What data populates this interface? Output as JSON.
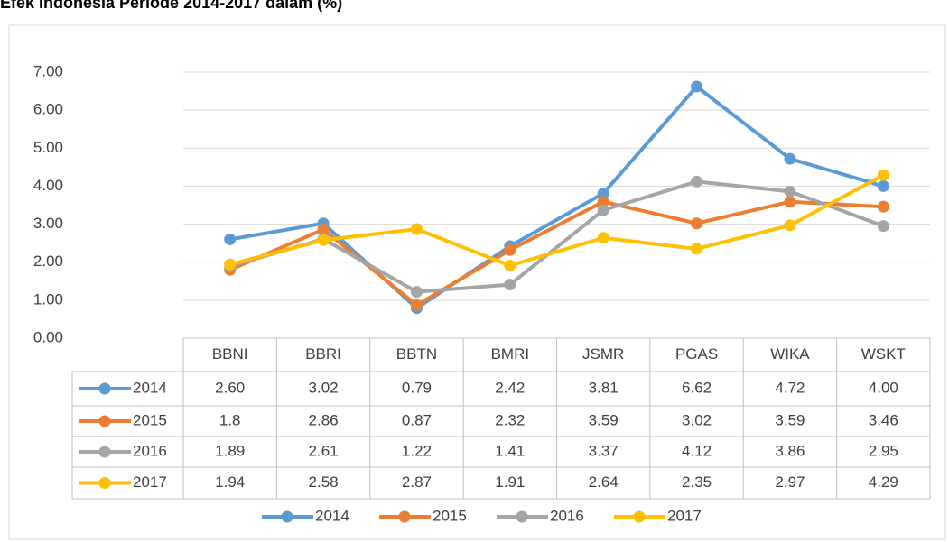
{
  "chart_data": {
    "type": "line",
    "title": "Efek Indonesia Periode 2014-2017 dalam (%)",
    "categories": [
      "BBNI",
      "BBRI",
      "BBTN",
      "BMRI",
      "JSMR",
      "PGAS",
      "WIKA",
      "WSKT"
    ],
    "series": [
      {
        "name": "2014",
        "color": "#5b9bd5",
        "values": [
          2.6,
          3.02,
          0.79,
          2.42,
          3.81,
          6.62,
          4.72,
          4.0
        ],
        "value_labels": [
          "2.60",
          "3.02",
          "0.79",
          "2.42",
          "3.81",
          "6.62",
          "4.72",
          "4.00"
        ]
      },
      {
        "name": "2015",
        "color": "#ed7d31",
        "values": [
          1.8,
          2.86,
          0.87,
          2.32,
          3.59,
          3.02,
          3.59,
          3.46
        ],
        "value_labels": [
          "1.8",
          "2.86",
          "0.87",
          "2.32",
          "3.59",
          "3.02",
          "3.59",
          "3.46"
        ]
      },
      {
        "name": "2016",
        "color": "#a5a5a5",
        "values": [
          1.89,
          2.61,
          1.22,
          1.41,
          3.37,
          4.12,
          3.86,
          2.95
        ],
        "value_labels": [
          "1.89",
          "2.61",
          "1.22",
          "1.41",
          "3.37",
          "4.12",
          "3.86",
          "2.95"
        ]
      },
      {
        "name": "2017",
        "color": "#ffc000",
        "values": [
          1.94,
          2.58,
          2.87,
          1.91,
          2.64,
          2.35,
          2.97,
          4.29
        ],
        "value_labels": [
          "1.94",
          "2.58",
          "2.87",
          "1.91",
          "2.64",
          "2.35",
          "2.97",
          "4.29"
        ]
      }
    ],
    "ylim": [
      0,
      7
    ],
    "yticks": [
      {
        "value": 0,
        "label": "0.00"
      },
      {
        "value": 1,
        "label": "1.00"
      },
      {
        "value": 2,
        "label": "2.00"
      },
      {
        "value": 3,
        "label": "3.00"
      },
      {
        "value": 4,
        "label": "4.00"
      },
      {
        "value": 5,
        "label": "5.00"
      },
      {
        "value": 6,
        "label": "6.00"
      },
      {
        "value": 7,
        "label": "7.00"
      }
    ],
    "grid": true,
    "legend": "bottom"
  }
}
